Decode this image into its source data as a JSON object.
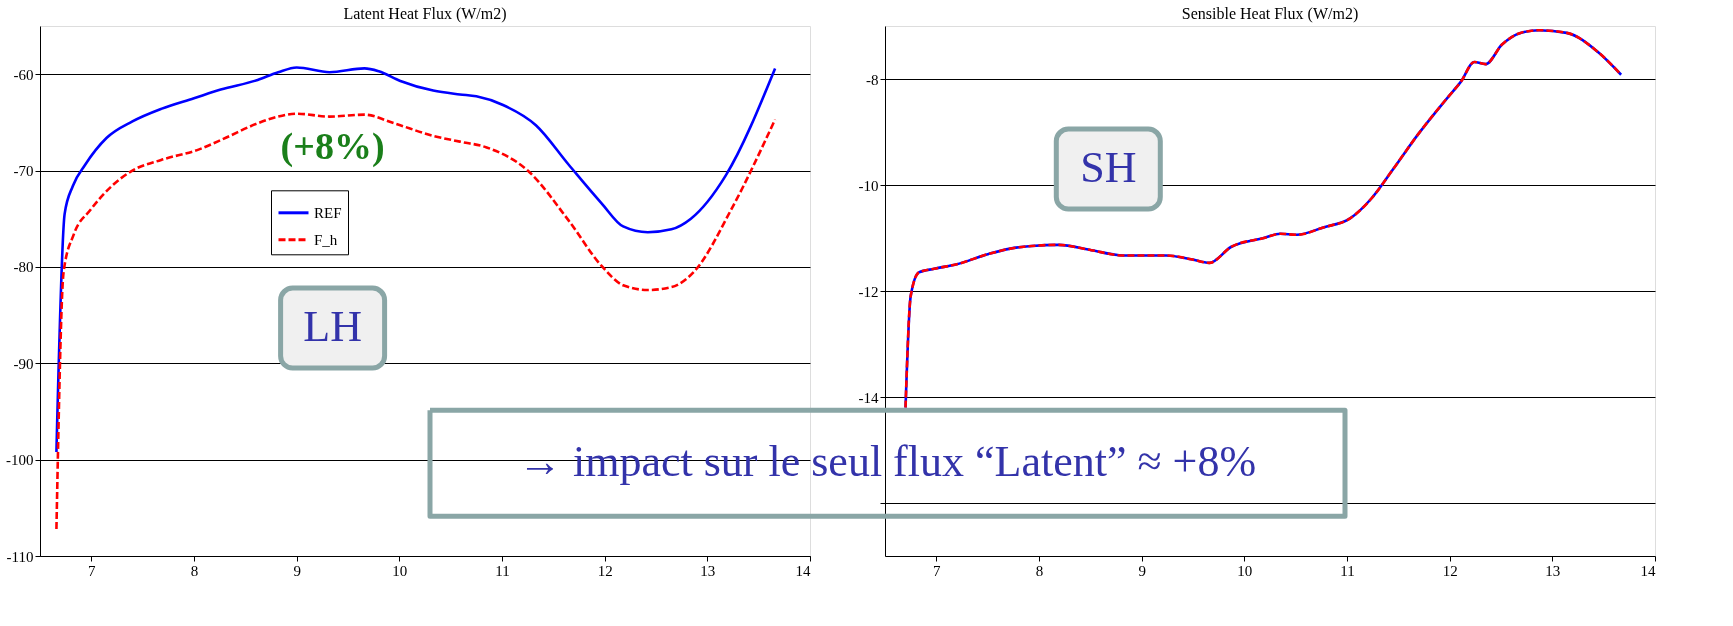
{
  "chart_data": [
    {
      "type": "line",
      "title": "Latent Heat Flux (W/m2)",
      "xlim": [
        6.5,
        14
      ],
      "xticks": [
        7,
        8,
        9,
        10,
        11,
        12,
        13,
        14
      ],
      "ylim": [
        -110,
        -55
      ],
      "yticks": [
        -110,
        -100,
        -90,
        -80,
        -70,
        -60
      ],
      "grid": "y",
      "legend": "top",
      "series": [
        {
          "name": "REF",
          "color": "#0000ff",
          "line_style": "solid",
          "x": [
            6.66,
            6.74,
            6.82,
            6.94,
            7.15,
            7.4,
            7.68,
            8.0,
            8.26,
            8.62,
            8.82,
            9.0,
            9.32,
            9.66,
            9.8,
            10.01,
            10.33,
            10.59,
            10.75,
            11.01,
            11.33,
            11.65,
            11.97,
            12.18,
            12.42,
            12.65,
            12.84,
            13.18,
            13.66
          ],
          "values": [
            -99.2,
            -74.5,
            -71.6,
            -69.4,
            -66.6,
            -64.9,
            -63.6,
            -62.5,
            -61.6,
            -60.6,
            -59.8,
            -59.3,
            -59.8,
            -59.4,
            -59.7,
            -60.7,
            -61.7,
            -62.1,
            -62.3,
            -63.2,
            -65.3,
            -69.4,
            -73.4,
            -75.8,
            -76.4,
            -76.1,
            -75.0,
            -70.5,
            -59.4
          ]
        },
        {
          "name": "F_h",
          "color": "#ff0000",
          "line_style": "dashed",
          "x": [
            6.66,
            6.73,
            6.83,
            6.99,
            7.2,
            7.4,
            7.68,
            8.05,
            8.31,
            8.62,
            8.82,
            9.0,
            9.32,
            9.66,
            9.95,
            10.33,
            10.59,
            10.85,
            11.25,
            11.65,
            11.97,
            12.18,
            12.42,
            12.65,
            12.87,
            13.24,
            13.66
          ],
          "values": [
            -107.2,
            -80.5,
            -76.6,
            -74.1,
            -71.6,
            -70.0,
            -68.9,
            -67.8,
            -66.6,
            -65.1,
            -64.4,
            -64.1,
            -64.4,
            -64.2,
            -65.1,
            -66.4,
            -67.0,
            -67.6,
            -70.0,
            -75.2,
            -79.9,
            -81.9,
            -82.4,
            -82.1,
            -80.5,
            -73.9,
            -64.7
          ]
        }
      ],
      "annotations": [
        "(+8%)",
        "LH"
      ]
    },
    {
      "type": "line",
      "title": "Sensible Heat Flux (W/m2)",
      "xlim": [
        6.5,
        14
      ],
      "xticks": [
        7,
        8,
        9,
        10,
        11,
        12,
        13,
        14
      ],
      "ylim": [
        -17,
        -7
      ],
      "yticks": [
        {
          "value": -16,
          "label": null
        },
        -14,
        -12,
        -10,
        -8
      ],
      "grid": "y",
      "legend": "center",
      "series": [
        {
          "name": "REF",
          "color": "#0000ff",
          "line_style": "solid",
          "x": [
            6.7,
            6.75,
            6.83,
            6.98,
            7.19,
            7.51,
            7.72,
            7.93,
            8.19,
            8.51,
            8.82,
            9.24,
            9.48,
            9.66,
            9.87,
            10.19,
            10.35,
            10.51,
            10.77,
            11.03,
            11.24,
            11.45,
            11.69,
            11.98,
            12.11,
            12.24,
            12.35,
            12.51,
            12.69,
            12.87,
            13.14,
            13.45,
            13.67
          ],
          "values": [
            -14.2,
            -12.1,
            -11.65,
            -11.58,
            -11.5,
            -11.3,
            -11.2,
            -11.15,
            -11.13,
            -11.23,
            -11.33,
            -11.33,
            -11.4,
            -11.47,
            -11.17,
            -11.0,
            -10.92,
            -10.94,
            -10.8,
            -10.63,
            -10.25,
            -9.7,
            -9.05,
            -8.35,
            -8.05,
            -7.68,
            -7.72,
            -7.35,
            -7.13,
            -7.08,
            -7.13,
            -7.5,
            -7.92
          ]
        },
        {
          "name": "F_h",
          "color": "#ff0000",
          "line_style": "dashed",
          "x": [
            6.7,
            6.75,
            6.83,
            6.98,
            7.19,
            7.51,
            7.72,
            7.93,
            8.19,
            8.51,
            8.82,
            9.24,
            9.48,
            9.66,
            9.87,
            10.19,
            10.35,
            10.51,
            10.77,
            11.03,
            11.24,
            11.45,
            11.69,
            11.98,
            12.11,
            12.24,
            12.35,
            12.51,
            12.69,
            12.87,
            13.14,
            13.45,
            13.67
          ],
          "values": [
            -14.2,
            -12.1,
            -11.65,
            -11.58,
            -11.5,
            -11.3,
            -11.2,
            -11.15,
            -11.13,
            -11.23,
            -11.33,
            -11.33,
            -11.4,
            -11.47,
            -11.17,
            -11.0,
            -10.92,
            -10.94,
            -10.8,
            -10.63,
            -10.25,
            -9.7,
            -9.05,
            -8.35,
            -8.05,
            -7.68,
            -7.72,
            -7.35,
            -7.13,
            -7.08,
            -7.13,
            -7.5,
            -7.92
          ]
        }
      ],
      "annotations": [
        "SH",
        "→ impact sur le seul flux “Latent”  ≈ +8%"
      ]
    }
  ]
}
